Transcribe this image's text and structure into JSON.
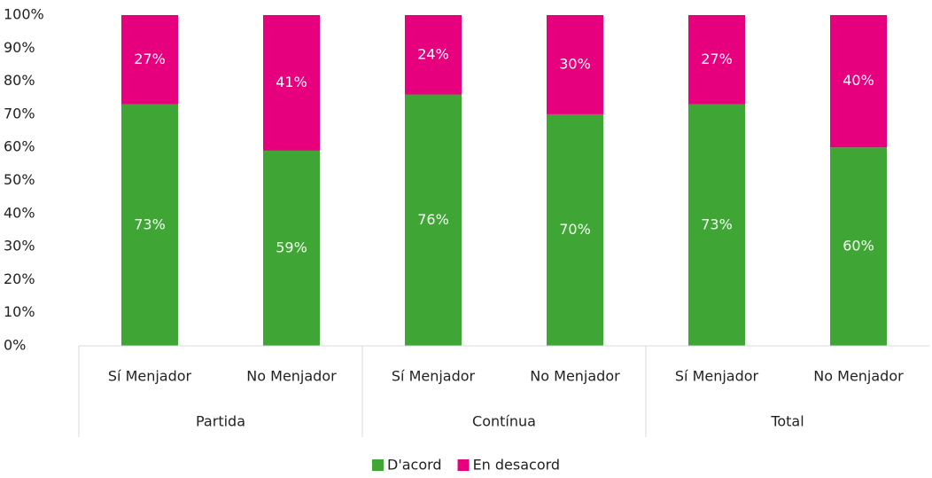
{
  "chart_data": {
    "type": "stacked_bar",
    "categories": [
      "Sí Menjador",
      "No Menjador",
      "Sí Menjador",
      "No Menjador",
      "Sí Menjador",
      "No Menjador"
    ],
    "groups": [
      "Partida",
      "Contínua",
      "Total"
    ],
    "series": [
      {
        "name": "D'acord",
        "color": "#3fa535",
        "values": [
          73,
          59,
          76,
          70,
          73,
          60
        ],
        "value_labels": [
          "73%",
          "59%",
          "76%",
          "70%",
          "73%",
          "60%"
        ]
      },
      {
        "name": "En desacord",
        "color": "#e6007e",
        "values": [
          27,
          41,
          24,
          30,
          27,
          40
        ],
        "value_labels": [
          "27%",
          "41%",
          "24%",
          "30%",
          "27%",
          "40%"
        ]
      }
    ],
    "ylim": [
      0,
      100
    ],
    "yticks": [
      {
        "value": 0,
        "label": "0%"
      },
      {
        "value": 10,
        "label": "10%"
      },
      {
        "value": 20,
        "label": "20%"
      },
      {
        "value": 30,
        "label": "30%"
      },
      {
        "value": 40,
        "label": "40%"
      },
      {
        "value": 50,
        "label": "50%"
      },
      {
        "value": 60,
        "label": "60%"
      },
      {
        "value": 70,
        "label": "70%"
      },
      {
        "value": 80,
        "label": "80%"
      },
      {
        "value": 90,
        "label": "90%"
      },
      {
        "value": 100,
        "label": "100%"
      }
    ],
    "legend": "bottom"
  }
}
